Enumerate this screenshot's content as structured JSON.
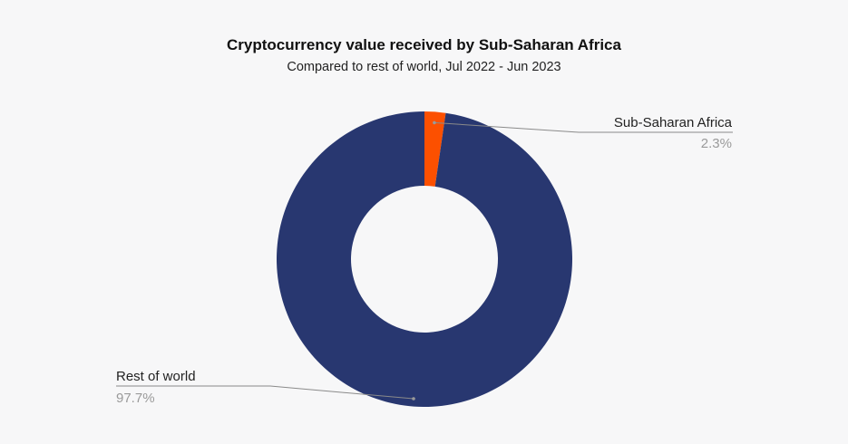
{
  "chart_data": {
    "type": "pie",
    "variant": "donut",
    "title": "Cryptocurrency value received by Sub-Saharan Africa",
    "subtitle": "Compared to rest of world, Jul 2022 - Jun 2023",
    "slices": [
      {
        "label": "Sub-Saharan Africa",
        "value": 2.3,
        "value_label": "2.3%",
        "color": "#fc5000"
      },
      {
        "label": "Rest of world",
        "value": 97.7,
        "value_label": "97.7%",
        "color": "#283770"
      }
    ],
    "legend": "none",
    "grid": false
  }
}
